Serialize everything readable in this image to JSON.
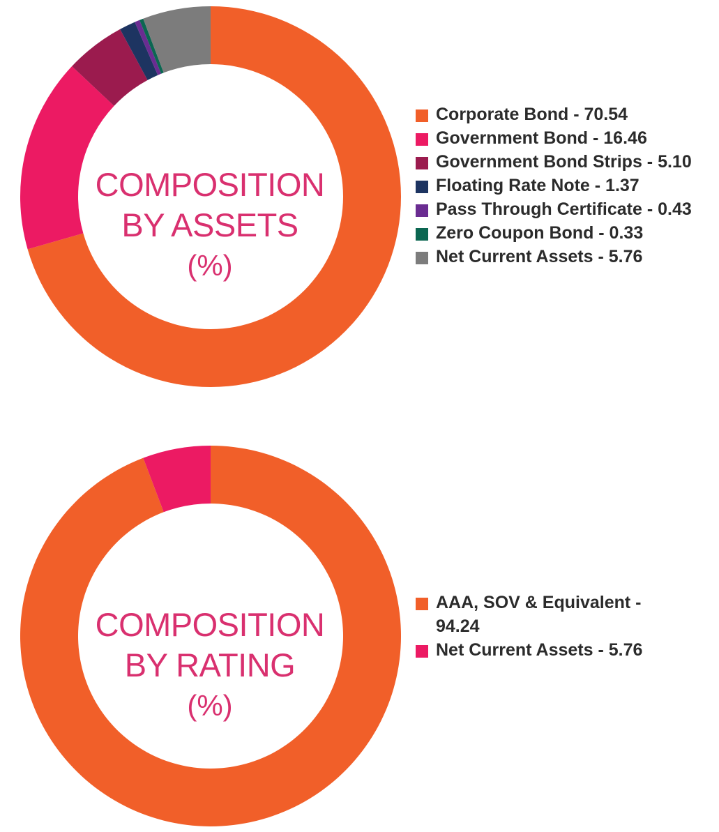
{
  "chart_data": [
    {
      "type": "donut",
      "center_title": [
        "COMPOSITION",
        "BY ASSETS",
        "(%)"
      ],
      "legend_position": "right",
      "slices": [
        {
          "label": "Corporate Bond - 70.54",
          "value": 70.54,
          "color": "#f15f29"
        },
        {
          "label": "Government Bond - 16.46",
          "value": 16.46,
          "color": "#ec1a63"
        },
        {
          "label": "Government Bond Strips - 5.10",
          "value": 5.1,
          "color": "#9b1b4e"
        },
        {
          "label": "Floating Rate Note - 1.37",
          "value": 1.37,
          "color": "#1d3461"
        },
        {
          "label": "Pass Through Certificate - 0.43",
          "value": 0.43,
          "color": "#6a2c91"
        },
        {
          "label": "Zero Coupon Bond - 0.33",
          "value": 0.33,
          "color": "#0b6651"
        },
        {
          "label": "Net Current Assets - 5.76",
          "value": 5.76,
          "color": "#7c7c7c"
        }
      ]
    },
    {
      "type": "donut",
      "center_title": [
        "COMPOSITION",
        "BY RATING",
        "(%)"
      ],
      "legend_position": "right",
      "slices": [
        {
          "label": "AAA, SOV & Equivalent - 94.24",
          "value": 94.24,
          "color": "#f15f29"
        },
        {
          "label": "Net Current Assets - 5.76",
          "value": 5.76,
          "color": "#ec1a63"
        }
      ]
    }
  ]
}
